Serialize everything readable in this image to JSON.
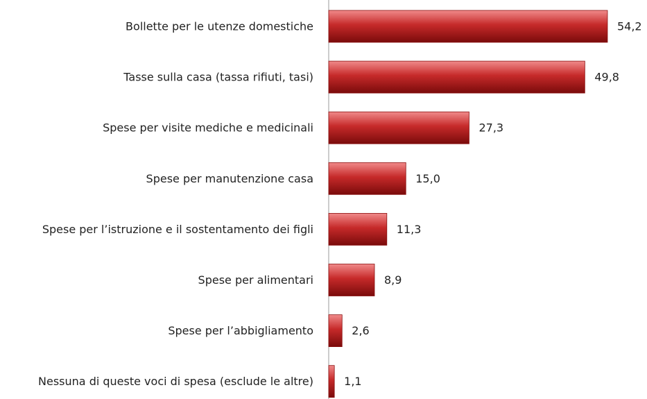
{
  "chart_data": {
    "type": "barh",
    "categories": [
      "Bollette per le utenze domestiche",
      "Tasse sulla casa (tassa rifiuti, tasi)",
      "Spese per visite mediche e medicinali",
      "Spese per manutenzione casa",
      "Spese per l’istruzione e il sostentamento dei figli",
      "Spese per alimentari",
      "Spese per l’abbigliamento",
      "Nessuna di queste voci di spesa (esclude le altre)"
    ],
    "values": [
      54.2,
      49.8,
      27.3,
      15.0,
      11.3,
      8.9,
      2.6,
      1.1
    ],
    "value_labels": [
      "54,2",
      "49,8",
      "27,3",
      "15,0",
      "11,3",
      "8,9",
      "2,6",
      "1,1"
    ],
    "color": "#c62a2a",
    "xlim": [
      0,
      60
    ]
  }
}
